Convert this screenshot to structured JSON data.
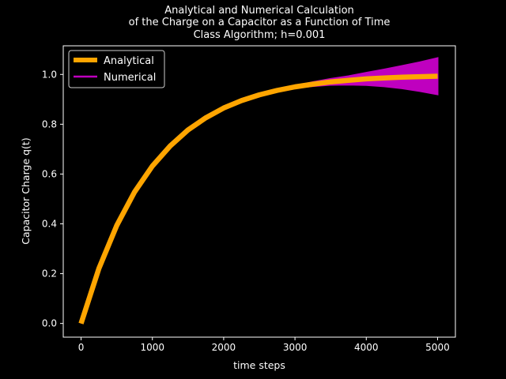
{
  "chart_data": {
    "type": "line",
    "title": [
      "Analytical and Numerical Calculation",
      "of the Charge on a Capacitor as a Function of Time",
      "Class Algorithm; h=0.001"
    ],
    "xlabel": "time steps",
    "ylabel": "Capacitor Charge q(t)",
    "xlim": [
      -250,
      5250
    ],
    "ylim": [
      -0.055,
      1.115
    ],
    "xticks": [
      0,
      1000,
      2000,
      3000,
      4000,
      5000
    ],
    "xtick_labels": [
      "0",
      "1000",
      "2000",
      "3000",
      "4000",
      "5000"
    ],
    "yticks": [
      0.0,
      0.2,
      0.4,
      0.6,
      0.8,
      1.0
    ],
    "ytick_labels": [
      "0.0",
      "0.2",
      "0.4",
      "0.6",
      "0.8",
      "1.0"
    ],
    "grid": false,
    "legend_position": "top-left",
    "x": [
      0,
      250,
      500,
      750,
      1000,
      1250,
      1500,
      1750,
      2000,
      2250,
      2500,
      2750,
      3000,
      3250,
      3500,
      3750,
      4000,
      4250,
      4500,
      4750,
      5000
    ],
    "series": [
      {
        "name": "Analytical",
        "color": "#ffa500",
        "values": [
          0.0,
          0.221,
          0.393,
          0.528,
          0.632,
          0.713,
          0.777,
          0.826,
          0.865,
          0.895,
          0.918,
          0.936,
          0.95,
          0.961,
          0.97,
          0.976,
          0.982,
          0.986,
          0.989,
          0.991,
          0.993
        ]
      },
      {
        "name": "Numerical",
        "color": "#bf00bf",
        "values_lower": [
          0.0,
          0.221,
          0.393,
          0.528,
          0.632,
          0.713,
          0.777,
          0.826,
          0.865,
          0.895,
          0.918,
          0.935,
          0.946,
          0.953,
          0.958,
          0.959,
          0.957,
          0.952,
          0.944,
          0.933,
          0.92
        ],
        "values_upper": [
          0.0,
          0.221,
          0.393,
          0.528,
          0.632,
          0.713,
          0.777,
          0.826,
          0.865,
          0.895,
          0.918,
          0.937,
          0.954,
          0.969,
          0.982,
          0.993,
          1.007,
          1.02,
          1.034,
          1.049,
          1.066
        ]
      }
    ]
  }
}
